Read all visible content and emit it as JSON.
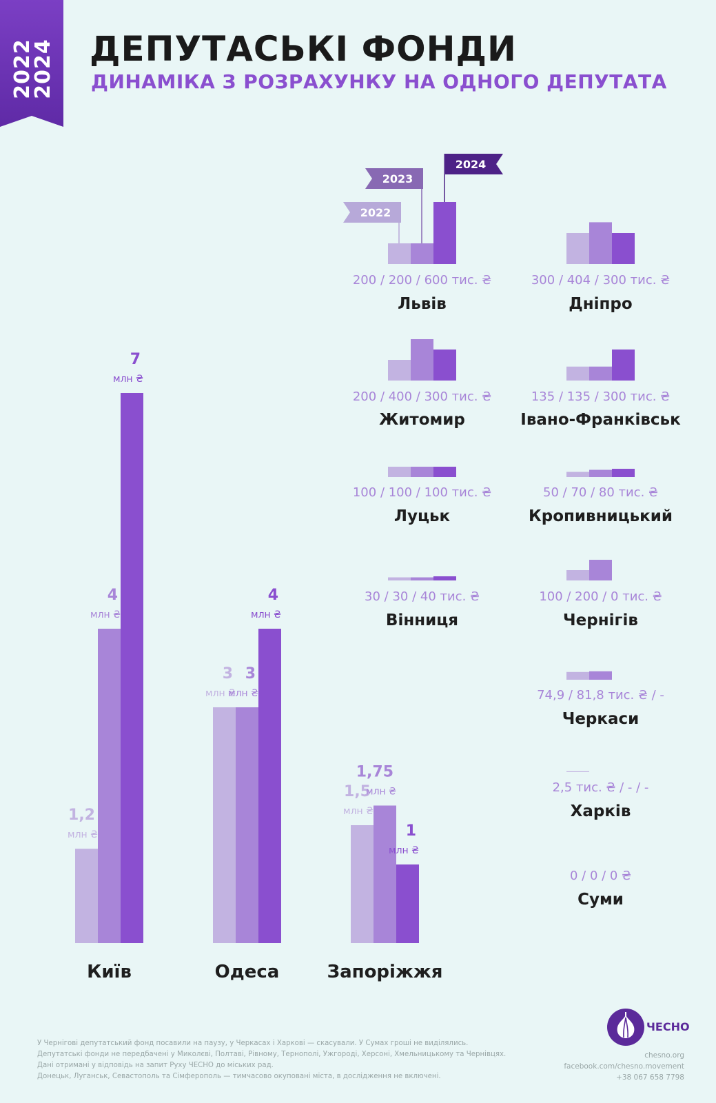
{
  "header": {
    "years": [
      "2022",
      "2024"
    ],
    "title": "ДЕПУТАСЬКІ ФОНДИ",
    "subtitle": "ДИНАМІКА З РОЗРАХУНКУ НА ОДНОГО ДЕПУТАТА"
  },
  "colors": {
    "y2022": "#c2b3e1",
    "y2023": "#a885d8",
    "y2024": "#8a4fcf",
    "ribbon": "#7b3fc4",
    "flag2022": "#b7a9d9",
    "flag2023": "#8869b3",
    "flag2024": "#4d2287",
    "subtitle": "#8a4fcf"
  },
  "chart_data": [
    {
      "type": "bar",
      "group": "large",
      "unit": "млн ₴",
      "series_years": [
        "2022",
        "2023",
        "2024"
      ],
      "cities": [
        {
          "name": "Київ",
          "values": [
            1.2,
            4,
            7
          ],
          "labels": [
            "1,2",
            "4",
            "7"
          ]
        },
        {
          "name": "Одеса",
          "values": [
            3,
            3,
            4
          ],
          "labels": [
            "3",
            "3",
            "4"
          ]
        },
        {
          "name": "Запоріжжя",
          "values": [
            1.5,
            1.75,
            1
          ],
          "labels": [
            "1,5",
            "1,75",
            "1"
          ]
        }
      ]
    },
    {
      "type": "bar",
      "group": "small",
      "unit": "тис. ₴",
      "series_years": [
        "2022",
        "2023",
        "2024"
      ],
      "cities": [
        {
          "name": "Львів",
          "values": [
            200,
            200,
            600
          ],
          "caption": "200 / 200 / 600 тис. ₴"
        },
        {
          "name": "Дніпро",
          "values": [
            300,
            404,
            300
          ],
          "caption": "300 / 404 / 300 тис. ₴"
        },
        {
          "name": "Житомир",
          "values": [
            200,
            400,
            300
          ],
          "caption": "200 / 400 / 300 тис. ₴"
        },
        {
          "name": "Івано-Франківськ",
          "values": [
            135,
            135,
            300
          ],
          "caption": "135 / 135 / 300 тис. ₴"
        },
        {
          "name": "Луцьк",
          "values": [
            100,
            100,
            100
          ],
          "caption": "100 / 100 / 100 тис. ₴"
        },
        {
          "name": "Кропивницький",
          "values": [
            50,
            70,
            80
          ],
          "caption": "50 / 70 / 80 тис. ₴"
        },
        {
          "name": "Вінниця",
          "values": [
            30,
            30,
            40
          ],
          "caption": "30 / 30 / 40 тис. ₴"
        },
        {
          "name": "Чернігів",
          "values": [
            100,
            200,
            0
          ],
          "caption": "100 / 200 / 0 тис. ₴"
        },
        {
          "name": "Черкаси",
          "values": [
            74.9,
            81.8,
            null
          ],
          "caption": "74,9 / 81,8 тис. ₴ / -"
        },
        {
          "name": "Харків",
          "values": [
            2.5,
            null,
            null
          ],
          "caption": "2,5 тис. ₴ / - / -"
        },
        {
          "name": "Суми",
          "values": [
            0,
            0,
            0
          ],
          "caption": "0 / 0 / 0 ₴"
        }
      ]
    }
  ],
  "footnotes": [
    "У Чернігові депутатський фонд посавили на паузу, у Черкасах і Харкові — скасували. У Сумах гроші не виділялись.",
    "Депутатські фонди не передбачені у Миколєві, Полтаві, Рівному, Тернополі, Ужгороді, Херсоні, Хмельницькому та Чернівцях.",
    "Дані отримані у відповідь на запит Руху ЧЕСНО до міських рад.",
    "Донецьк, Луганськ, Севастополь та Сімферополь — тимчасово окуповані міста, в дослідження не включені."
  ],
  "brand": {
    "name": "ЧЕСНО",
    "site": "chesno.org",
    "facebook": "facebook.com/chesno.movement",
    "phone": "+38 067 658 7798"
  }
}
